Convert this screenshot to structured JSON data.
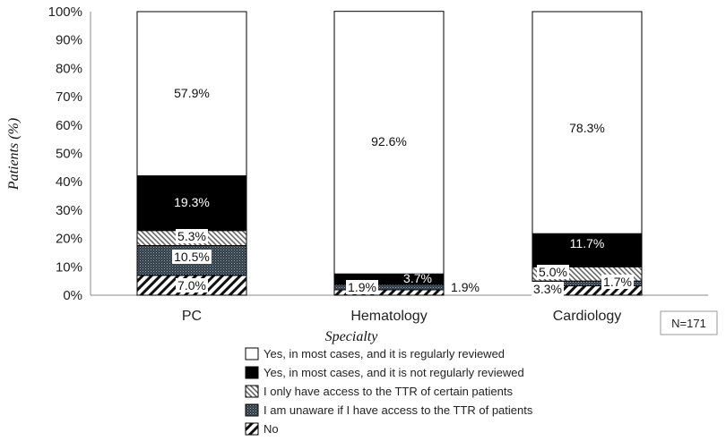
{
  "chart_data": {
    "type": "bar",
    "stacked": true,
    "categories": [
      "PC",
      "Hematology",
      "Cardiology"
    ],
    "xlabel": "Specialty",
    "ylabel": "Patients (%)",
    "ylim": [
      0,
      100
    ],
    "yticks": [
      0,
      10,
      20,
      30,
      40,
      50,
      60,
      70,
      80,
      90,
      100
    ],
    "grid": false,
    "legend_position": "bottom",
    "note": "N=171",
    "series": [
      {
        "name": "No",
        "values": [
          7.0,
          1.9,
          3.3
        ],
        "labels": [
          "7.0%",
          "",
          "3.3%"
        ],
        "fill": "pattern-hatch",
        "color": "#111111"
      },
      {
        "name": "I am unaware if I have access to the TTR of patients",
        "values": [
          10.5,
          1.9,
          1.7
        ],
        "labels": [
          "10.5%",
          "1.9%",
          "1.7%"
        ],
        "fill": "pattern-dots",
        "color": "#2f3b45"
      },
      {
        "name": "I only have access to the TTR of certain patients",
        "values": [
          5.3,
          0.0,
          5.0
        ],
        "labels": [
          "5.3%",
          "",
          "5.0%"
        ],
        "fill": "pattern-stripes",
        "color": "#888888"
      },
      {
        "name": "Yes, in most cases, and it is not regularly reviewed",
        "values": [
          19.3,
          3.7,
          11.7
        ],
        "labels": [
          "19.3%",
          "3.7%",
          "11.7%"
        ],
        "fill": "solid-black",
        "color": "#000000"
      },
      {
        "name": "Yes, in most cases, and it is regularly reviewed",
        "values": [
          57.9,
          92.6,
          78.3
        ],
        "labels": [
          "57.9%",
          "92.6%",
          "78.3%"
        ],
        "fill": "solid-white",
        "color": "#ffffff"
      }
    ],
    "extra_labels": [
      {
        "category": "Hematology",
        "text": "1.9%"
      }
    ],
    "legend_order": [
      "Yes, in most cases, and it is regularly reviewed",
      "Yes, in most cases, and it is not regularly reviewed",
      "I only have access to the TTR of certain patients",
      "I am unaware if I have access to the TTR of patients",
      "No"
    ]
  }
}
